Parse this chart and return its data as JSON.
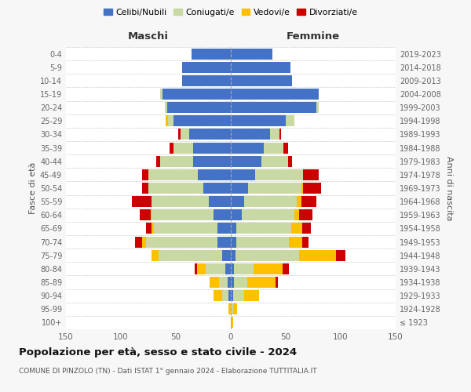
{
  "age_groups": [
    "100+",
    "95-99",
    "90-94",
    "85-89",
    "80-84",
    "75-79",
    "70-74",
    "65-69",
    "60-64",
    "55-59",
    "50-54",
    "45-49",
    "40-44",
    "35-39",
    "30-34",
    "25-29",
    "20-24",
    "15-19",
    "10-14",
    "5-9",
    "0-4"
  ],
  "birth_years": [
    "≤ 1923",
    "1924-1928",
    "1929-1933",
    "1934-1938",
    "1939-1943",
    "1944-1948",
    "1949-1953",
    "1954-1958",
    "1959-1963",
    "1964-1968",
    "1969-1973",
    "1974-1978",
    "1979-1983",
    "1984-1988",
    "1989-1993",
    "1994-1998",
    "1999-2003",
    "2004-2008",
    "2009-2013",
    "2014-2018",
    "2019-2023"
  ],
  "colors": {
    "celibe": "#4472c4",
    "coniugato": "#c8d9a4",
    "vedovo": "#ffc000",
    "divorziato": "#cc0000"
  },
  "maschi": {
    "celibe": [
      0,
      0,
      2,
      3,
      5,
      8,
      12,
      12,
      16,
      20,
      25,
      30,
      34,
      34,
      38,
      52,
      58,
      62,
      44,
      44,
      36
    ],
    "coniugato": [
      0,
      0,
      6,
      8,
      18,
      58,
      65,
      58,
      56,
      52,
      50,
      45,
      30,
      18,
      8,
      5,
      2,
      2,
      0,
      0,
      0
    ],
    "vedovo": [
      0,
      2,
      8,
      8,
      8,
      6,
      4,
      2,
      1,
      0,
      0,
      0,
      0,
      0,
      0,
      2,
      0,
      0,
      0,
      0,
      0
    ],
    "divorziato": [
      0,
      0,
      0,
      0,
      2,
      0,
      6,
      5,
      10,
      18,
      6,
      6,
      4,
      4,
      2,
      0,
      0,
      0,
      0,
      0,
      0
    ]
  },
  "femmine": {
    "celibe": [
      0,
      0,
      2,
      3,
      3,
      4,
      5,
      5,
      10,
      12,
      16,
      22,
      28,
      30,
      36,
      50,
      78,
      80,
      56,
      54,
      38
    ],
    "coniugato": [
      0,
      2,
      10,
      12,
      18,
      58,
      48,
      50,
      48,
      48,
      48,
      44,
      24,
      18,
      8,
      8,
      2,
      0,
      0,
      0,
      0
    ],
    "vedovo": [
      2,
      4,
      14,
      26,
      26,
      34,
      12,
      10,
      4,
      4,
      2,
      0,
      0,
      0,
      0,
      0,
      0,
      0,
      0,
      0,
      0
    ],
    "divorziato": [
      0,
      0,
      0,
      2,
      6,
      8,
      6,
      8,
      12,
      14,
      16,
      14,
      4,
      4,
      2,
      0,
      0,
      0,
      0,
      0,
      0
    ]
  },
  "title": "Popolazione per età, sesso e stato civile - 2024",
  "subtitle": "COMUNE DI PINZOLO (TN) - Dati ISTAT 1° gennaio 2024 - Elaborazione TUTTITALIA.IT",
  "maschi_label": "Maschi",
  "femmine_label": "Femmine",
  "ylabel_left": "Fasce di età",
  "ylabel_right": "Anni di nascita",
  "xlim": 150,
  "legend_labels": [
    "Celibi/Nubili",
    "Coniugati/e",
    "Vedovi/e",
    "Divorziati/e"
  ],
  "bg_color": "#f7f7f7",
  "plot_bg": "#ffffff",
  "grid_color": "#cccccc"
}
